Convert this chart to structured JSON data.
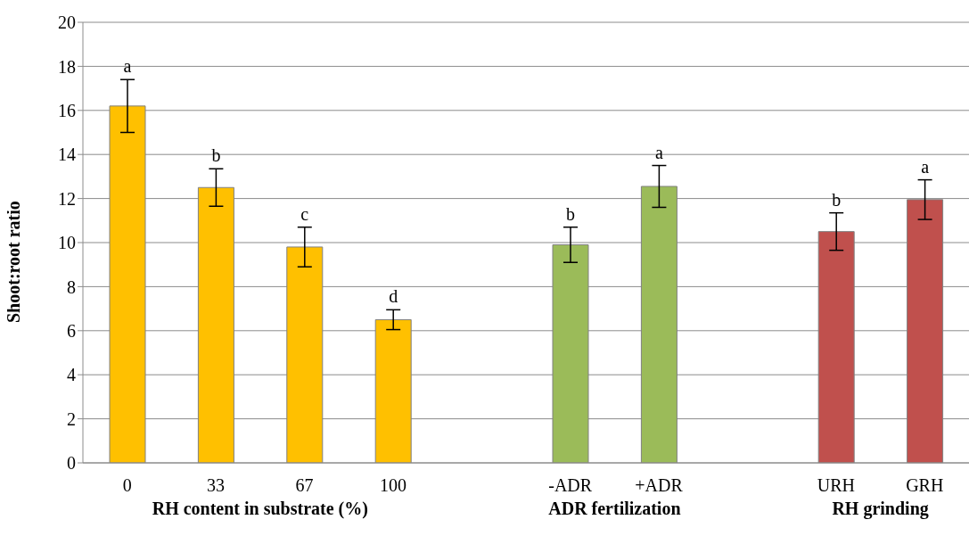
{
  "chart_data": {
    "type": "bar",
    "ylabel": "Shoot:root ratio",
    "categories": [
      "0",
      "33",
      "67",
      "100",
      null,
      "-ADR",
      "+ADR",
      null,
      "URH",
      "GRH"
    ],
    "values": [
      16.2,
      12.5,
      9.8,
      6.5,
      null,
      9.9,
      12.55,
      null,
      10.5,
      11.95
    ],
    "errors": [
      1.2,
      0.85,
      0.9,
      0.45,
      null,
      0.8,
      0.95,
      null,
      0.85,
      0.9
    ],
    "value_labels": [
      "a",
      "b",
      "c",
      "d",
      null,
      "b",
      "a",
      null,
      "b",
      "a"
    ],
    "colors": [
      "#ffc000",
      "#ffc000",
      "#ffc000",
      "#ffc000",
      "#ffc000",
      "#9bbb59",
      "#9bbb59",
      "#9bbb59",
      "#c0504d",
      "#c0504d"
    ],
    "annotations": [
      "RH content in substrate (%)",
      "ADR fertilization",
      "RH grinding"
    ],
    "ylim": [
      0,
      20
    ],
    "yticks": [
      0,
      2,
      4,
      6,
      8,
      10,
      12,
      14,
      16,
      18,
      20
    ],
    "grid": "y"
  }
}
